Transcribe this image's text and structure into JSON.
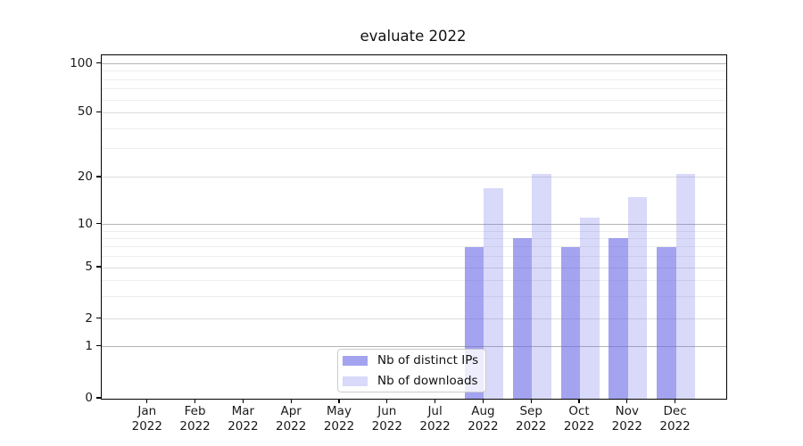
{
  "chart_data": {
    "type": "bar",
    "title": "evaluate 2022",
    "categories": [
      "Jan",
      "Feb",
      "Mar",
      "Apr",
      "May",
      "Jun",
      "Jul",
      "Aug",
      "Sep",
      "Oct",
      "Nov",
      "Dec"
    ],
    "category_year": "2022",
    "series": [
      {
        "name": "Nb of distinct IPs",
        "values": [
          null,
          null,
          null,
          null,
          null,
          null,
          null,
          7,
          8,
          7,
          8,
          7
        ]
      },
      {
        "name": "Nb of downloads",
        "values": [
          null,
          null,
          null,
          null,
          null,
          null,
          null,
          17,
          21,
          11,
          15,
          21
        ]
      }
    ],
    "yscale": "symlog",
    "yticks": [
      0,
      1,
      2,
      5,
      10,
      20,
      50,
      100
    ],
    "yticks_minor": [
      3,
      4,
      6,
      7,
      8,
      9,
      30,
      40,
      60,
      70,
      80,
      90
    ],
    "ylim": [
      0,
      114
    ],
    "xlabel": "",
    "ylabel": "",
    "grid": true,
    "legend_position": "lower center"
  },
  "colors": {
    "bar_base_rgb": "102,102,230",
    "distinct_ips_alpha": 0.6,
    "downloads_alpha": 0.25,
    "grid_decade": "#b3b3b3",
    "grid_submajor": "#dcdcdc",
    "grid_minor": "#ededed",
    "axis": "#000000",
    "text": "#1a1a1a"
  }
}
